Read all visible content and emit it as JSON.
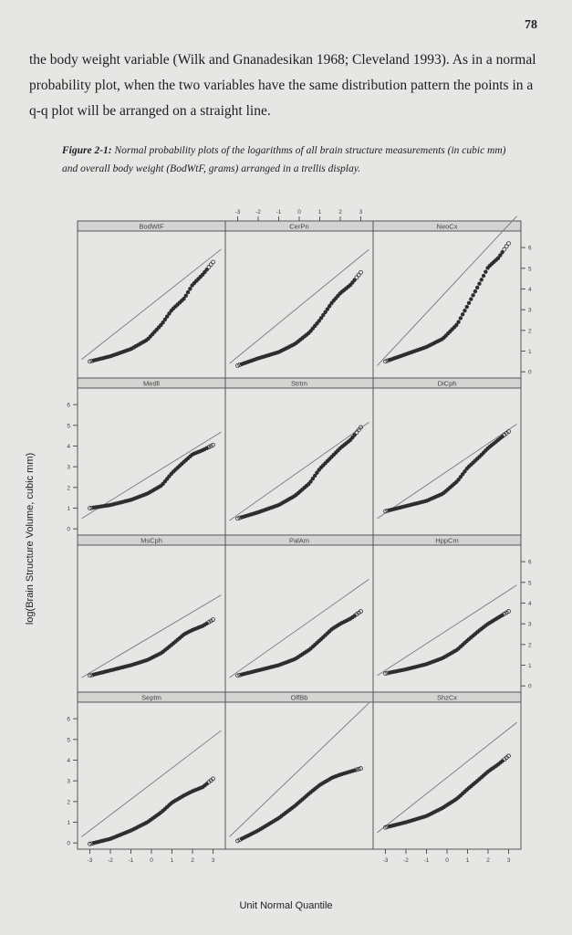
{
  "page": {
    "number": "78",
    "paragraph": "the body weight variable (Wilk and Gnanadesikan 1968; Cleveland 1993). As in a normal probability plot, when the two variables have the same distribution pattern the points in a q-q plot will be arranged on a straight line.",
    "caption_lead": "Figure 2-1:",
    "caption_text": " Normal probability plots of the logarithms of all brain structure measurements (in cubic mm) and overall body weight (BodWtF, grams) arranged in a trellis display."
  },
  "chart_data": {
    "type": "scatter",
    "xlabel": "Unit Normal Quantile",
    "ylabel": "log(Brain Structure Volume, cubic mm)",
    "xlim": [
      -3.6,
      3.6
    ],
    "ylim": [
      -0.3,
      6.8
    ],
    "x_ticks": [
      -3,
      -2,
      -1,
      0,
      1,
      2,
      3
    ],
    "y_ticks": [
      0,
      1,
      2,
      3,
      4,
      5,
      6
    ],
    "grid": false,
    "panels": [
      {
        "name": "BodWtF",
        "line": [
          0.6,
          2.8
        ],
        "curve": [
          [
            -3,
            0.5
          ],
          [
            -2,
            0.75
          ],
          [
            -1,
            1.1
          ],
          [
            -0.2,
            1.55
          ],
          [
            0.5,
            2.3
          ],
          [
            1,
            3.0
          ],
          [
            1.6,
            3.55
          ],
          [
            2,
            4.2
          ],
          [
            2.5,
            4.7
          ],
          [
            3,
            5.3
          ]
        ]
      },
      {
        "name": "CerPn",
        "line": [
          0.4,
          2.9
        ],
        "curve": [
          [
            -3,
            0.3
          ],
          [
            -2,
            0.65
          ],
          [
            -1,
            0.95
          ],
          [
            -0.2,
            1.35
          ],
          [
            0.5,
            1.9
          ],
          [
            1,
            2.5
          ],
          [
            1.6,
            3.35
          ],
          [
            2,
            3.8
          ],
          [
            2.5,
            4.2
          ],
          [
            3,
            4.8
          ]
        ]
      },
      {
        "name": "NeoCx",
        "line": [
          0.3,
          3.8
        ],
        "curve": [
          [
            -3,
            0.5
          ],
          [
            -2,
            0.85
          ],
          [
            -1,
            1.2
          ],
          [
            -0.2,
            1.6
          ],
          [
            0.5,
            2.3
          ],
          [
            1,
            3.2
          ],
          [
            1.6,
            4.3
          ],
          [
            2,
            5.05
          ],
          [
            2.5,
            5.5
          ],
          [
            3,
            6.2
          ]
        ]
      },
      {
        "name": "Medll",
        "line": [
          0.5,
          2.2
        ],
        "curve": [
          [
            -3,
            1.0
          ],
          [
            -2,
            1.15
          ],
          [
            -1,
            1.4
          ],
          [
            -0.2,
            1.7
          ],
          [
            0.5,
            2.1
          ],
          [
            1,
            2.7
          ],
          [
            1.6,
            3.25
          ],
          [
            2,
            3.6
          ],
          [
            2.5,
            3.8
          ],
          [
            3,
            4.05
          ]
        ]
      },
      {
        "name": "Strtm",
        "line": [
          0.4,
          2.5
        ],
        "curve": [
          [
            -3,
            0.5
          ],
          [
            -2,
            0.8
          ],
          [
            -1,
            1.15
          ],
          [
            -0.2,
            1.6
          ],
          [
            0.5,
            2.2
          ],
          [
            1,
            2.9
          ],
          [
            1.6,
            3.5
          ],
          [
            2,
            3.9
          ],
          [
            2.5,
            4.3
          ],
          [
            3,
            4.9
          ]
        ]
      },
      {
        "name": "DiCph",
        "line": [
          0.5,
          2.4
        ],
        "curve": [
          [
            -3,
            0.85
          ],
          [
            -2,
            1.1
          ],
          [
            -1,
            1.35
          ],
          [
            -0.2,
            1.7
          ],
          [
            0.5,
            2.3
          ],
          [
            1,
            2.95
          ],
          [
            1.6,
            3.5
          ],
          [
            2,
            3.9
          ],
          [
            2.5,
            4.3
          ],
          [
            3,
            4.7
          ]
        ]
      },
      {
        "name": "MsCph",
        "line": [
          0.4,
          2.1
        ],
        "curve": [
          [
            -3,
            0.5
          ],
          [
            -2,
            0.75
          ],
          [
            -1,
            1.0
          ],
          [
            -0.2,
            1.25
          ],
          [
            0.5,
            1.6
          ],
          [
            1,
            2.0
          ],
          [
            1.6,
            2.5
          ],
          [
            2,
            2.7
          ],
          [
            2.5,
            2.9
          ],
          [
            3,
            3.2
          ]
        ]
      },
      {
        "name": "PalAm",
        "line": [
          0.4,
          2.5
        ],
        "curve": [
          [
            -3,
            0.5
          ],
          [
            -2,
            0.75
          ],
          [
            -1,
            1.0
          ],
          [
            -0.2,
            1.3
          ],
          [
            0.5,
            1.75
          ],
          [
            1,
            2.2
          ],
          [
            1.6,
            2.75
          ],
          [
            2,
            3.0
          ],
          [
            2.5,
            3.25
          ],
          [
            3,
            3.6
          ]
        ]
      },
      {
        "name": "HppCm",
        "line": [
          0.5,
          2.3
        ],
        "curve": [
          [
            -3,
            0.6
          ],
          [
            -2,
            0.8
          ],
          [
            -1,
            1.05
          ],
          [
            -0.2,
            1.35
          ],
          [
            0.5,
            1.75
          ],
          [
            1,
            2.2
          ],
          [
            1.6,
            2.7
          ],
          [
            2,
            3.0
          ],
          [
            2.5,
            3.3
          ],
          [
            3,
            3.6
          ]
        ]
      },
      {
        "name": "Septm",
        "line": [
          0.3,
          2.7
        ],
        "curve": [
          [
            -3,
            -0.05
          ],
          [
            -2,
            0.2
          ],
          [
            -1,
            0.6
          ],
          [
            -0.2,
            1.0
          ],
          [
            0.5,
            1.5
          ],
          [
            1,
            1.95
          ],
          [
            1.6,
            2.3
          ],
          [
            2,
            2.5
          ],
          [
            2.5,
            2.7
          ],
          [
            3,
            3.1
          ]
        ]
      },
      {
        "name": "OlfBb",
        "line": [
          0.3,
          3.4
        ],
        "curve": [
          [
            -3,
            0.1
          ],
          [
            -2,
            0.6
          ],
          [
            -1,
            1.2
          ],
          [
            -0.2,
            1.8
          ],
          [
            0.5,
            2.4
          ],
          [
            1,
            2.8
          ],
          [
            1.6,
            3.15
          ],
          [
            2,
            3.3
          ],
          [
            2.5,
            3.45
          ],
          [
            3,
            3.6
          ]
        ]
      },
      {
        "name": "ShzCx",
        "line": [
          0.5,
          2.8
        ],
        "curve": [
          [
            -3,
            0.75
          ],
          [
            -2,
            1.0
          ],
          [
            -1,
            1.3
          ],
          [
            -0.2,
            1.7
          ],
          [
            0.5,
            2.15
          ],
          [
            1,
            2.6
          ],
          [
            1.6,
            3.1
          ],
          [
            2,
            3.45
          ],
          [
            2.5,
            3.8
          ],
          [
            3,
            4.2
          ]
        ]
      }
    ]
  }
}
